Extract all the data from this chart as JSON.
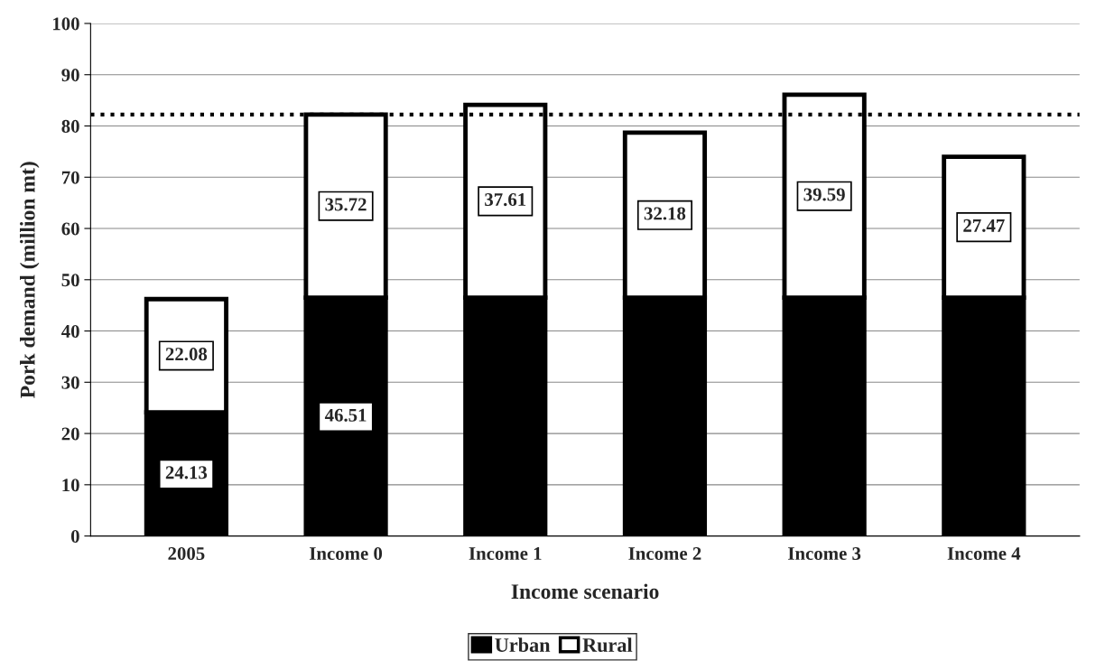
{
  "chart_data": {
    "type": "bar",
    "stacked": true,
    "xlabel": "Income scenario",
    "ylabel": "Pork demand (million mt)",
    "categories": [
      "2005",
      "Income 0",
      "Income 1",
      "Income 2",
      "Income 3",
      "Income 4"
    ],
    "series": [
      {
        "name": "Urban",
        "color": "#000000",
        "values": [
          24.13,
          46.51,
          46.51,
          46.51,
          46.51,
          46.51
        ],
        "value_labels": [
          "24.13",
          "46.51",
          null,
          null,
          null,
          null
        ]
      },
      {
        "name": "Rural",
        "color": "#ffffff",
        "values": [
          22.08,
          35.72,
          37.61,
          32.18,
          39.59,
          27.47
        ],
        "value_labels": [
          "22.08",
          "35.72",
          "37.61",
          "32.18",
          "39.59",
          "27.47"
        ]
      }
    ],
    "ylim": [
      0,
      100
    ],
    "yticks": [
      0,
      10,
      20,
      30,
      40,
      50,
      60,
      70,
      80,
      90,
      100
    ],
    "ref_lines": [
      {
        "axis": "y",
        "value": 82.23,
        "color": "#000000",
        "line_style": "dotted"
      }
    ],
    "grid": "y",
    "legend": "bottom"
  }
}
